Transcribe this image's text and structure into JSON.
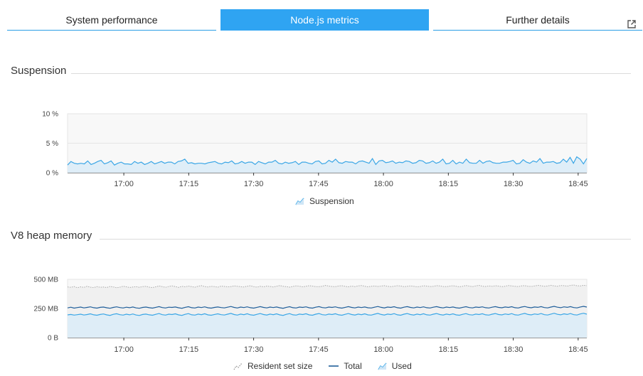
{
  "tabs": [
    {
      "label": "System performance",
      "active": false
    },
    {
      "label": "Node.js metrics",
      "active": true
    },
    {
      "label": "Further details",
      "active": false,
      "icon": "external-link-icon"
    }
  ],
  "colors": {
    "accent": "#2fa4f2",
    "used_line": "#3aa6e6",
    "used_fill": "#dcecf7",
    "total_line": "#1f5e9a",
    "rss_line": "#a9a9a9",
    "rss_fill": "#f0f0f0",
    "plot_bg": "#f8f8f8"
  },
  "sections": {
    "suspension_title": "Suspension",
    "heap_title": "V8 heap memory"
  },
  "chart_data": [
    {
      "type": "area",
      "title": "Suspension",
      "y_ticks": [
        "10 %",
        "5 %",
        "0 %"
      ],
      "ylim": [
        0,
        10
      ],
      "x_ticks": [
        "17:00",
        "17:15",
        "17:30",
        "17:45",
        "18:00",
        "18:15",
        "18:30",
        "18:45"
      ],
      "x_range": [
        "16:47",
        "18:47"
      ],
      "grid": true,
      "legend_position": "bottom-center",
      "series": [
        {
          "name": "Suspension",
          "style": "area-line",
          "values": [
            1.3,
            1.9,
            1.6,
            1.5,
            1.6,
            1.5,
            2.0,
            1.4,
            1.6,
            1.9,
            2.1,
            1.5,
            1.7,
            2.0,
            1.3,
            1.6,
            1.8,
            1.5,
            1.5,
            1.4,
            1.9,
            1.6,
            1.8,
            1.4,
            1.6,
            1.9,
            1.5,
            1.7,
            1.9,
            1.6,
            1.8,
            1.8,
            1.5,
            1.9,
            2.0,
            2.3,
            1.6,
            1.7,
            1.5,
            1.6,
            1.6,
            1.5,
            1.7,
            1.8,
            1.9,
            1.6,
            1.5,
            1.8,
            1.7,
            2.0,
            1.5,
            1.6,
            1.9,
            1.6,
            1.8,
            1.8,
            1.4,
            1.9,
            1.7,
            1.5,
            1.8,
            1.8,
            2.1,
            1.6,
            1.5,
            1.8,
            1.6,
            1.7,
            1.9,
            1.4,
            1.8,
            1.8,
            1.6,
            1.5,
            1.9,
            2.0,
            1.5,
            1.6,
            2.1,
            1.8,
            2.3,
            1.7,
            1.6,
            1.9,
            1.8,
            1.8,
            1.5,
            1.9,
            2.0,
            1.8,
            1.6,
            2.4,
            1.4,
            2.0,
            2.1,
            1.7,
            1.8,
            2.0,
            1.6,
            1.8,
            1.7,
            2.0,
            1.9,
            1.6,
            1.7,
            2.1,
            2.0,
            1.6,
            1.7,
            2.0,
            1.6,
            1.8,
            2.3,
            1.5,
            1.6,
            2.1,
            1.5,
            1.8,
            1.6,
            2.3,
            1.7,
            1.6,
            1.6,
            2.1,
            1.6,
            1.9,
            2.0,
            1.7,
            1.6,
            1.6,
            1.8,
            1.8,
            1.9,
            2.1,
            1.5,
            1.6,
            2.2,
            1.8,
            1.6,
            2.0,
            1.8,
            2.4,
            1.6,
            1.8,
            1.8,
            1.9,
            1.6,
            1.7,
            2.3,
            1.8,
            2.6,
            1.6,
            2.7,
            2.3,
            1.5,
            2.4
          ]
        }
      ]
    },
    {
      "type": "area",
      "title": "V8 heap memory",
      "y_ticks": [
        "500 MB",
        "250 MB",
        "0 B"
      ],
      "ylim": [
        0,
        500
      ],
      "x_ticks": [
        "17:00",
        "17:15",
        "17:30",
        "17:45",
        "18:00",
        "18:15",
        "18:30",
        "18:45"
      ],
      "x_range": [
        "16:47",
        "18:47"
      ],
      "grid": true,
      "legend_position": "bottom-center",
      "series": [
        {
          "name": "Resident set size",
          "style": "dotted-area",
          "values": [
            435,
            432,
            438,
            428,
            436,
            431,
            440,
            433,
            429,
            437,
            432,
            434,
            430,
            439,
            435,
            428,
            433,
            441,
            436,
            430,
            434,
            437,
            432,
            438,
            440,
            433,
            429,
            436,
            443,
            437,
            432,
            439,
            444,
            438,
            431,
            440,
            436,
            442,
            437,
            433,
            441,
            446,
            438,
            435,
            440,
            437,
            433,
            442,
            439,
            436,
            438,
            444,
            440,
            437,
            434,
            441,
            445,
            438,
            433,
            440,
            436,
            442,
            439,
            435,
            441,
            447,
            440,
            437,
            433,
            439,
            444,
            441,
            436,
            440,
            446,
            442,
            438,
            437,
            441,
            448,
            442,
            439,
            437,
            443,
            445,
            440,
            436,
            442,
            438,
            444,
            447,
            441,
            436,
            440,
            443,
            439,
            442,
            446,
            440,
            438,
            441,
            445,
            443,
            437,
            440,
            444,
            441,
            436,
            439,
            445,
            442,
            438,
            440,
            446,
            443,
            439,
            437,
            442,
            445,
            440,
            436,
            441,
            447,
            442,
            438,
            444,
            448,
            441,
            439,
            443,
            440,
            445,
            442,
            437,
            441,
            447,
            443,
            440,
            438,
            444,
            446,
            441,
            439,
            443,
            448,
            445,
            440,
            443,
            449,
            444,
            441,
            447,
            446,
            442,
            448,
            451,
            445,
            443,
            449,
            446
          ]
        },
        {
          "name": "Total",
          "style": "line",
          "values": [
            255,
            261,
            253,
            258,
            262,
            255,
            259,
            264,
            257,
            253,
            260,
            262,
            256,
            252,
            259,
            264,
            258,
            254,
            261,
            257,
            263,
            255,
            252,
            259,
            262,
            257,
            253,
            260,
            266,
            258,
            254,
            261,
            259,
            263,
            256,
            252,
            260,
            265,
            257,
            254,
            262,
            258,
            264,
            256,
            253,
            259,
            263,
            258,
            255,
            261,
            267,
            259,
            254,
            262,
            258,
            264,
            257,
            253,
            260,
            266,
            259,
            255,
            262,
            258,
            263,
            256,
            252,
            260,
            265,
            257,
            254,
            262,
            259,
            264,
            256,
            253,
            261,
            266,
            258,
            255,
            262,
            259,
            264,
            257,
            253,
            260,
            266,
            259,
            255,
            262,
            258,
            263,
            256,
            254,
            261,
            267,
            260,
            255,
            262,
            259,
            265,
            257,
            253,
            261,
            266,
            259,
            255,
            262,
            258,
            264,
            257,
            254,
            261,
            266,
            259,
            255,
            262,
            258,
            263,
            256,
            253,
            260,
            265,
            258,
            255,
            262,
            259,
            264,
            257,
            254,
            261,
            266,
            259,
            256,
            263,
            259,
            265,
            257,
            254,
            262,
            267,
            260,
            256,
            263,
            260,
            266,
            258,
            255,
            262,
            268,
            261,
            257,
            264,
            260,
            266,
            258,
            255,
            263,
            268,
            262
          ]
        },
        {
          "name": "Used",
          "style": "area-line",
          "values": [
            195,
            199,
            193,
            197,
            201,
            194,
            198,
            204,
            196,
            192,
            199,
            203,
            195,
            191,
            200,
            205,
            197,
            193,
            201,
            196,
            203,
            194,
            190,
            199,
            202,
            196,
            192,
            200,
            207,
            197,
            193,
            201,
            198,
            204,
            195,
            191,
            200,
            206,
            196,
            193,
            202,
            197,
            205,
            195,
            192,
            199,
            204,
            197,
            194,
            201,
            208,
            198,
            193,
            202,
            197,
            205,
            196,
            192,
            200,
            207,
            198,
            194,
            202,
            197,
            204,
            195,
            191,
            200,
            206,
            196,
            193,
            202,
            198,
            205,
            195,
            192,
            201,
            207,
            197,
            194,
            202,
            198,
            205,
            196,
            192,
            200,
            207,
            198,
            194,
            202,
            197,
            204,
            195,
            193,
            201,
            208,
            199,
            194,
            202,
            198,
            206,
            196,
            192,
            201,
            207,
            198,
            194,
            202,
            197,
            205,
            196,
            193,
            201,
            207,
            198,
            194,
            202,
            197,
            204,
            195,
            192,
            200,
            206,
            197,
            194,
            202,
            198,
            205,
            196,
            193,
            201,
            207,
            198,
            195,
            203,
            198,
            206,
            196,
            193,
            202,
            208,
            199,
            195,
            203,
            199,
            207,
            197,
            194,
            202,
            209,
            200,
            196,
            204,
            199,
            207,
            197,
            194,
            203,
            209,
            201
          ]
        }
      ]
    }
  ]
}
